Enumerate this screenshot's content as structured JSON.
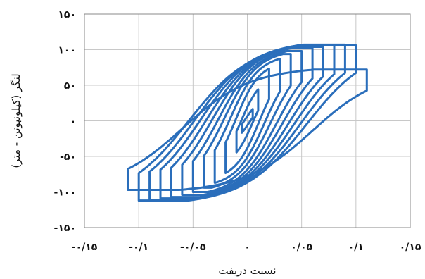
{
  "chart_data": {
    "type": "line",
    "title": "",
    "xlabel": "نسبت دریفت",
    "ylabel": "لنگر (کیلونیوتن - متر)",
    "xlim": [
      -0.15,
      0.15
    ],
    "ylim": [
      -150,
      150
    ],
    "grid": true,
    "legend": "none",
    "series_color": "#2a6ebb",
    "x_ticks": [
      -0.15,
      -0.1,
      -0.05,
      0,
      0.05,
      0.1,
      0.15
    ],
    "x_tick_labels": [
      "-۰/۱۵",
      "-۰/۱",
      "-۰/۰۵",
      "۰",
      "۰/۰۵",
      "۰/۱",
      "۰/۱۵"
    ],
    "y_ticks": [
      150,
      100,
      50,
      0,
      -50,
      -100,
      -150
    ],
    "y_tick_labels": [
      "۱۵۰",
      "۱۰۰",
      "۵۰",
      "۰",
      "-۵۰",
      "-۱۰۰",
      "-۱۵۰"
    ],
    "series": [
      {
        "loops": [
          {
            "amp": 0.005,
            "pos_max": 30,
            "neg_min": -30
          },
          {
            "amp": 0.01,
            "pos_max": 55,
            "neg_min": -55
          },
          {
            "amp": 0.02,
            "pos_max": 75,
            "neg_min": -75
          },
          {
            "amp": 0.03,
            "pos_max": 85,
            "neg_min": -85
          },
          {
            "amp": 0.04,
            "pos_max": 92,
            "neg_min": -92
          },
          {
            "amp": 0.05,
            "pos_max": 96,
            "neg_min": -98
          },
          {
            "amp": 0.06,
            "pos_max": 100,
            "neg_min": -102
          },
          {
            "amp": 0.07,
            "pos_max": 102,
            "neg_min": -105
          },
          {
            "amp": 0.08,
            "pos_max": 104,
            "neg_min": -107
          },
          {
            "amp": 0.09,
            "pos_max": 105,
            "neg_min": -109
          },
          {
            "amp": 0.1,
            "pos_max": 104,
            "neg_min": -110
          },
          {
            "amp": 0.11,
            "pos_max": 70,
            "neg_min": -95
          }
        ]
      }
    ]
  }
}
